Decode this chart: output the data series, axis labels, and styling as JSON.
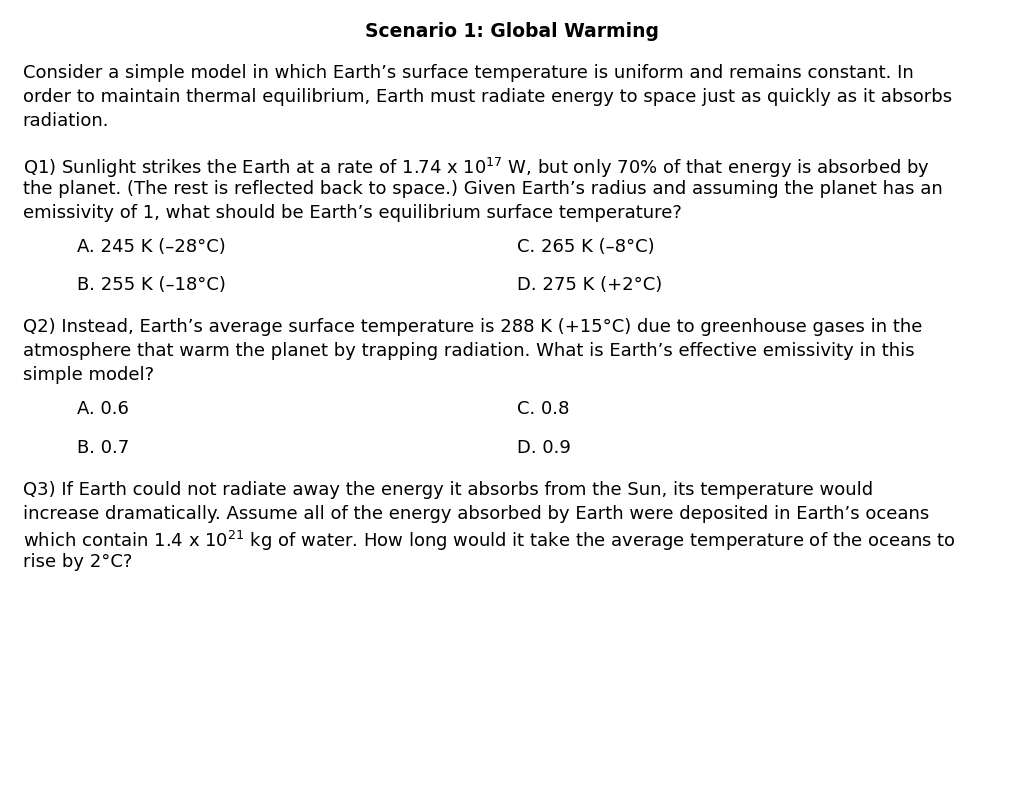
{
  "title": "Scenario 1: Global Warming",
  "background_color": "#ffffff",
  "text_color": "#000000",
  "title_fontsize": 13.5,
  "body_fontsize": 13.0,
  "font_family": "DejaVu Sans",
  "intro_text_lines": [
    "Consider a simple model in which Earth’s surface temperature is uniform and remains constant. In",
    "order to maintain thermal equilibrium, Earth must radiate energy to space just as quickly as it absorbs",
    "radiation."
  ],
  "q1_line1_pre": "Q1) Sunlight strikes the Earth at a rate of 1.74 x 10",
  "q1_line1_exp": "17",
  "q1_line1_post": " W, but only 70% of that energy is absorbed by",
  "q1_lines_rest": [
    "the planet. (The rest is reflected back to space.) Given Earth’s radius and assuming the planet has an",
    "emissivity of 1, what should be Earth’s equilibrium surface temperature?"
  ],
  "q1_options": [
    [
      "A. 245 K (–28°C)",
      "C. 265 K (–8°C)"
    ],
    [
      "B. 255 K (–18°C)",
      "D. 275 K (+2°C)"
    ]
  ],
  "q2_lines": [
    "Q2) Instead, Earth’s average surface temperature is 288 K (+15°C) due to greenhouse gases in the",
    "atmosphere that warm the planet by trapping radiation. What is Earth’s effective emissivity in this",
    "simple model?"
  ],
  "q2_options": [
    [
      "A. 0.6",
      "C. 0.8"
    ],
    [
      "B. 0.7",
      "D. 0.9"
    ]
  ],
  "q3_lines_pre": [
    "Q3) If Earth could not radiate away the energy it absorbs from the Sun, its temperature would",
    "increase dramatically. Assume all of the energy absorbed by Earth were deposited in Earth’s oceans",
    "which contain 1.4 x 10"
  ],
  "q3_exp": "21",
  "q3_line3_post": " kg of water. How long would it take the average temperature of the oceans to",
  "q3_last_line": "rise by 2°C?"
}
